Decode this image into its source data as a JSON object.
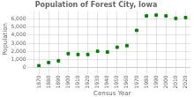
{
  "chart_data": {
    "type": "scatter",
    "title": "Population of Forest City, Iowa",
    "xlabel": "Census Year",
    "ylabel": "Population",
    "x": [
      1870,
      1880,
      1890,
      1900,
      1910,
      1920,
      1930,
      1940,
      1950,
      1960,
      1970,
      1980,
      1990,
      2000,
      2010,
      2020
    ],
    "values": [
      200,
      600,
      800,
      1700,
      1600,
      1600,
      2000,
      1900,
      2500,
      2700,
      4600,
      6400,
      6500,
      6400,
      6100,
      6200
    ],
    "color": "#008000",
    "marker": "square",
    "xlim": [
      1865,
      2025
    ],
    "xticks": [
      1870,
      1880,
      1890,
      1900,
      1910,
      1920,
      1930,
      1940,
      1950,
      1960,
      1970,
      1980,
      1990,
      2000,
      2010,
      2020
    ],
    "ylim": [
      0,
      7000
    ],
    "yticks": [
      0,
      {
        "value": 1000,
        "label": "1,000"
      },
      {
        "value": 2000,
        "label": "2,000"
      },
      {
        "value": 3000,
        "label": "3,000"
      },
      {
        "value": 4000,
        "label": "4,000"
      },
      {
        "value": 5000,
        "label": "5,000"
      },
      {
        "value": 6000,
        "label": "6,000"
      }
    ],
    "grid": true
  }
}
